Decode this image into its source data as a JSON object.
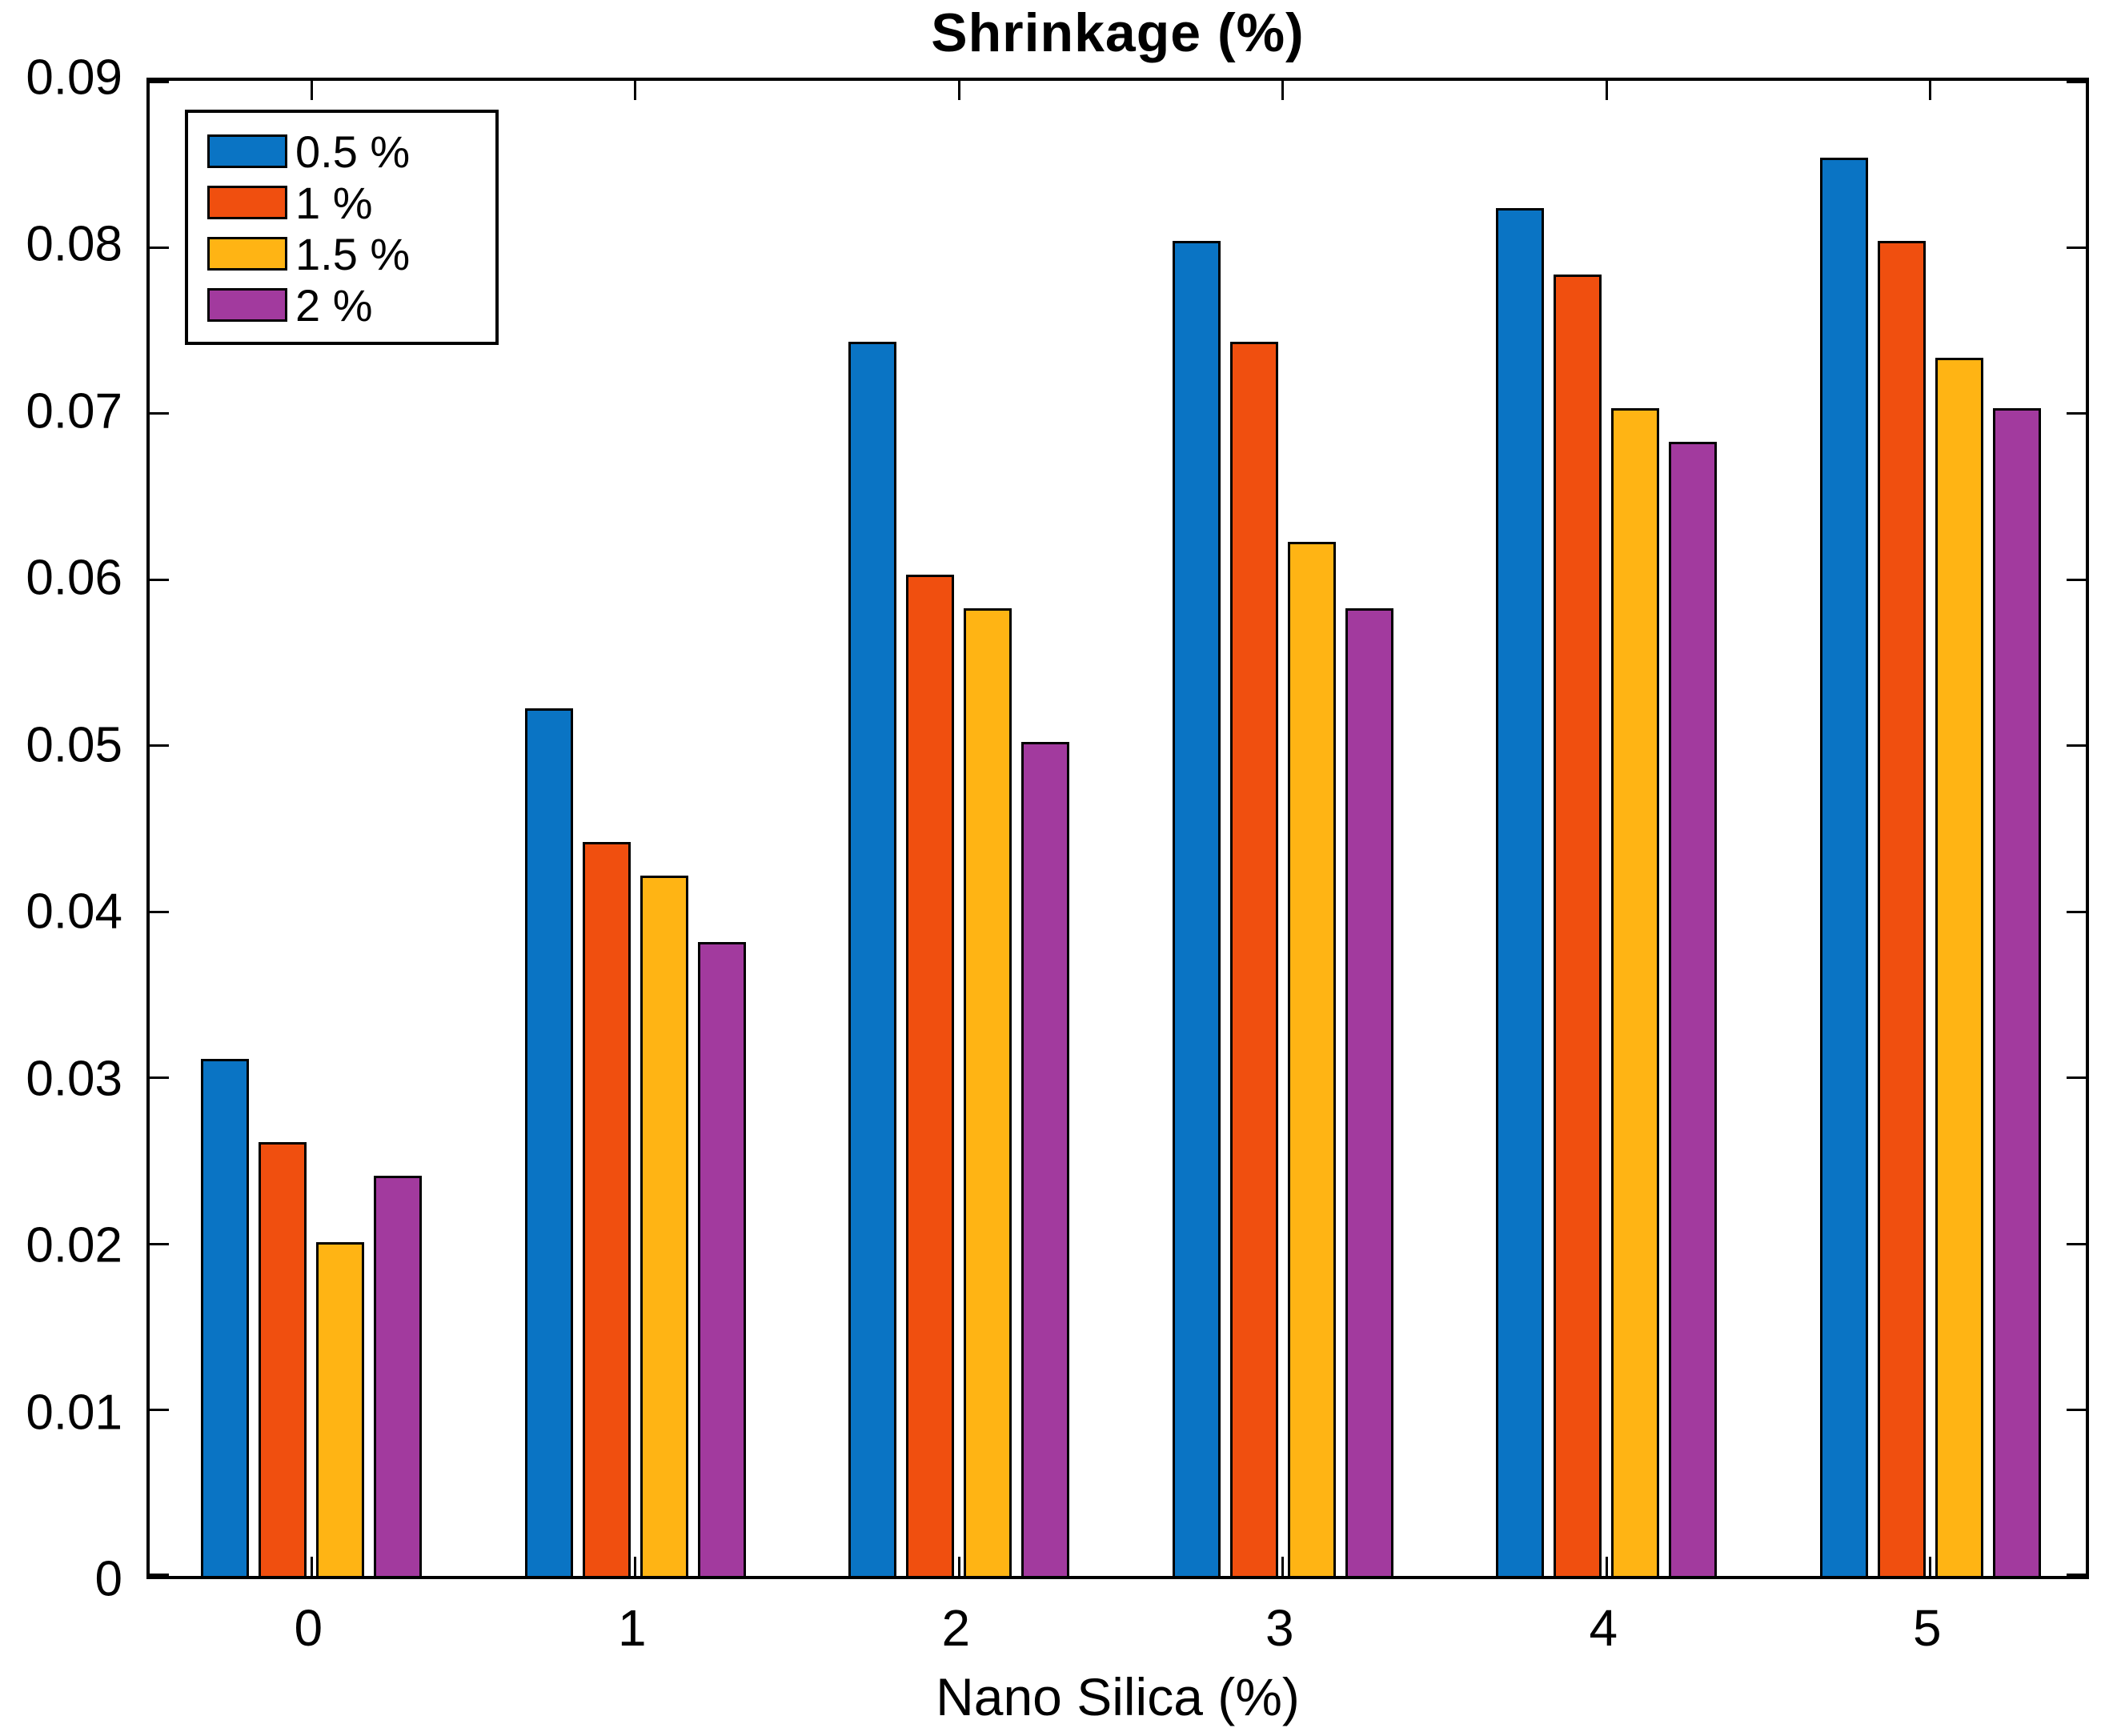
{
  "chart_data": {
    "type": "bar",
    "title": "Shrinkage (%)",
    "xlabel": "Nano Silica (%)",
    "ylabel": "",
    "categories": [
      "0",
      "1",
      "2",
      "3",
      "4",
      "5"
    ],
    "series": [
      {
        "name": "0.5 %",
        "color": "#0A74C4",
        "values": [
          0.031,
          0.052,
          0.074,
          0.08,
          0.082,
          0.085
        ]
      },
      {
        "name": "1 %",
        "color": "#F04F0F",
        "values": [
          0.026,
          0.044,
          0.06,
          0.074,
          0.078,
          0.08
        ]
      },
      {
        "name": "1.5 %",
        "color": "#FFB414",
        "values": [
          0.02,
          0.042,
          0.058,
          0.062,
          0.07,
          0.073
        ]
      },
      {
        "name": "2 %",
        "color": "#A23A9E",
        "values": [
          0.024,
          0.038,
          0.05,
          0.058,
          0.068,
          0.07
        ]
      }
    ],
    "ylim": [
      0,
      0.09
    ],
    "ytick_step": 0.01,
    "ytick_labels": [
      "0",
      "0.01",
      "0.02",
      "0.03",
      "0.04",
      "0.05",
      "0.06",
      "0.07",
      "0.08",
      "0.09"
    ],
    "legend_position": "top-left",
    "grid": false,
    "bar_edge_color": "#000000",
    "frame_color": "#000000",
    "background_color": "#FFFFFF"
  }
}
